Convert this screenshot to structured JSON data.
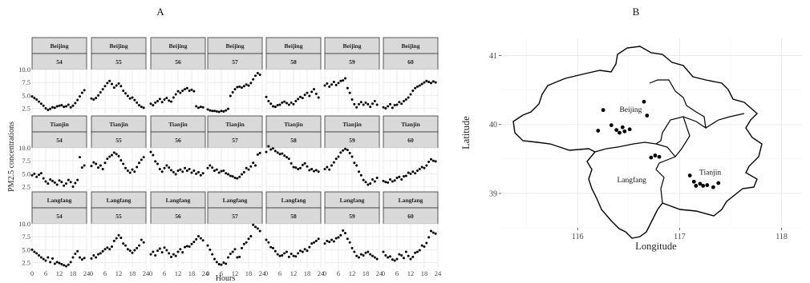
{
  "chart_data": [
    {
      "type": "scatter",
      "panel_label": "A",
      "ylabel": "PM2.5 concentrations",
      "xlabel": "Hours",
      "xlim": [
        0,
        24
      ],
      "ylim": [
        1.5,
        10
      ],
      "x_ticks": [
        0,
        6,
        12,
        18,
        24
      ],
      "y_ticks": [
        2.5,
        5.0,
        7.5,
        10.0
      ],
      "y_tick_labels": [
        "2.5",
        "5.0",
        "7.5",
        "10.0"
      ],
      "rows": [
        "Beijing",
        "Tianjin",
        "Langfang"
      ],
      "cols": [
        "54",
        "55",
        "56",
        "57",
        "58",
        "59",
        "60"
      ],
      "hours": [
        0,
        1,
        2,
        3,
        4,
        5,
        6,
        7,
        8,
        9,
        10,
        11,
        12,
        13,
        14,
        15,
        16,
        17,
        18,
        19,
        20,
        21,
        22,
        23
      ],
      "values": {
        "Beijing": [
          [
            4.8,
            4.5,
            4.2,
            3.8,
            3.4,
            3.0,
            2.5,
            2.2,
            2.4,
            2.7,
            2.6,
            2.9,
            3.0,
            3.1,
            2.8,
            2.9,
            3.2,
            2.7,
            3.0,
            3.5,
            4.1,
            4.8,
            5.5,
            6.0
          ],
          [
            4.4,
            4.2,
            4.5,
            5.0,
            5.6,
            6.2,
            6.8,
            7.4,
            7.8,
            7.2,
            6.5,
            6.9,
            7.3,
            6.8,
            5.9,
            5.4,
            4.9,
            4.4,
            4.6,
            4.1,
            3.6,
            3.1,
            2.8,
            2.6
          ],
          [
            3.4,
            3.1,
            3.6,
            3.9,
            4.3,
            3.7,
            4.2,
            4.5,
            4.0,
            3.8,
            4.6,
            5.2,
            5.8,
            5.5,
            5.9,
            6.2,
            6.4,
            5.9,
            6.1,
            5.8,
            2.9,
            2.6,
            2.8,
            2.7
          ],
          [
            2.3,
            2.1,
            2.0,
            2.0,
            1.9,
            1.8,
            2.0,
            1.9,
            2.1,
            2.4,
            4.9,
            5.6,
            6.2,
            6.6,
            6.7,
            6.5,
            6.8,
            7.1,
            6.9,
            7.4,
            8.1,
            8.8,
            9.3,
            9.0
          ],
          [
            4.7,
            3.9,
            3.4,
            2.9,
            2.8,
            3.1,
            3.2,
            3.6,
            3.8,
            3.5,
            3.2,
            3.6,
            3.3,
            3.9,
            4.3,
            4.7,
            4.5,
            5.1,
            5.5,
            4.9,
            5.7,
            6.2,
            5.3,
            4.6
          ],
          [
            6.9,
            7.3,
            6.7,
            7.1,
            7.6,
            7.0,
            7.4,
            7.8,
            7.9,
            8.3,
            6.4,
            5.5,
            4.2,
            3.3,
            2.7,
            3.3,
            3.7,
            3.2,
            3.6,
            3.3,
            2.8,
            3.4,
            3.9,
            3.2
          ],
          [
            2.7,
            2.5,
            2.9,
            3.3,
            2.6,
            3.1,
            3.2,
            3.7,
            3.4,
            3.9,
            4.2,
            4.6,
            5.2,
            5.9,
            6.4,
            6.7,
            6.9,
            7.2,
            7.5,
            7.8,
            7.6,
            7.4,
            7.7,
            7.5
          ]
        ],
        "Tianjin": [
          [
            4.7,
            5.0,
            4.4,
            4.8,
            5.1,
            4.1,
            3.5,
            3.1,
            3.9,
            3.6,
            3.3,
            2.9,
            3.7,
            3.4,
            2.7,
            3.1,
            3.8,
            3.4,
            2.5,
            3.2,
            3.8,
            8.2,
            6.2,
            6.6
          ],
          [
            6.5,
            7.2,
            6.9,
            6.2,
            6.6,
            5.9,
            7.1,
            7.9,
            8.3,
            8.6,
            9.1,
            8.8,
            8.4,
            7.6,
            6.9,
            6.1,
            5.6,
            5.2,
            5.8,
            5.4,
            6.3,
            7.1,
            7.7,
            8.2
          ],
          [
            9.2,
            8.6,
            7.4,
            6.9,
            5.9,
            5.4,
            6.1,
            6.6,
            6.2,
            5.7,
            5.3,
            4.9,
            5.6,
            5.8,
            5.4,
            6.1,
            5.6,
            5.9,
            5.2,
            5.6,
            5.0,
            5.3,
            4.7,
            5.1
          ],
          [
            6.1,
            6.6,
            6.2,
            5.6,
            5.8,
            5.2,
            5.5,
            5.6,
            5.1,
            4.9,
            4.6,
            4.5,
            4.2,
            4.1,
            4.4,
            4.9,
            5.3,
            6.1,
            5.8,
            6.4,
            7.1,
            6.6,
            8.7,
            9.0
          ],
          [
            9.2,
            10.3,
            9.7,
            9.9,
            9.4,
            9.1,
            8.8,
            8.9,
            8.5,
            8.2,
            7.9,
            7.0,
            6.3,
            6.2,
            5.9,
            6.1,
            6.7,
            7.0,
            6.4,
            5.7,
            5.9,
            5.5,
            5.7,
            5.4
          ],
          [
            5.9,
            6.3,
            5.8,
            6.6,
            7.2,
            7.9,
            8.3,
            9.1,
            9.5,
            9.8,
            9.6,
            9.0,
            8.3,
            7.1,
            6.6,
            5.4,
            4.7,
            3.8,
            3.4,
            2.9,
            3.1,
            3.9,
            3.5,
            4.2
          ],
          [
            3.6,
            3.4,
            3.3,
            3.9,
            3.5,
            3.7,
            4.2,
            4.4,
            3.9,
            4.5,
            4.6,
            5.2,
            5.0,
            5.4,
            5.1,
            5.6,
            5.9,
            6.3,
            6.1,
            6.6,
            7.3,
            7.8,
            7.5,
            7.4
          ]
        ],
        "Langfang": [
          [
            5.0,
            4.6,
            4.3,
            3.9,
            3.5,
            3.2,
            2.9,
            3.5,
            2.6,
            3.3,
            2.3,
            2.6,
            2.4,
            2.2,
            2.0,
            1.8,
            2.1,
            2.6,
            3.5,
            4.2,
            4.7,
            3.5,
            3.1,
            3.4
          ],
          [
            3.3,
            3.9,
            3.5,
            4.1,
            4.3,
            4.7,
            5.1,
            5.4,
            5.1,
            5.6,
            6.7,
            7.2,
            7.8,
            7.3,
            6.2,
            5.8,
            5.1,
            4.8,
            4.4,
            4.9,
            5.3,
            5.8,
            6.9,
            6.4
          ],
          [
            4.1,
            4.6,
            3.9,
            4.8,
            5.2,
            4.5,
            5.4,
            4.9,
            4.3,
            3.6,
            4.1,
            3.8,
            4.6,
            5.1,
            4.5,
            5.5,
            5.7,
            5.6,
            6.1,
            6.5,
            7.0,
            7.6,
            7.2,
            6.8
          ],
          [
            5.8,
            5.0,
            4.1,
            3.2,
            2.6,
            2.2,
            2.1,
            2.5,
            2.3,
            3.5,
            4.2,
            4.6,
            5.1,
            3.5,
            3.6,
            5.3,
            6.1,
            6.4,
            7.1,
            7.6,
            9.8,
            9.4,
            9.1,
            8.6
          ],
          [
            6.9,
            6.4,
            5.5,
            5.3,
            4.7,
            4.1,
            3.8,
            3.9,
            4.3,
            4.6,
            3.6,
            4.2,
            3.8,
            3.7,
            4.3,
            4.8,
            4.6,
            5.1,
            4.8,
            5.5,
            6.2,
            6.4,
            6.7,
            7.1
          ],
          [
            6.2,
            6.7,
            6.5,
            6.9,
            6.6,
            7.2,
            7.4,
            7.8,
            8.7,
            8.2,
            7.1,
            6.4,
            5.3,
            4.6,
            3.8,
            3.5,
            4.1,
            3.9,
            4.4,
            4.6,
            4.1,
            3.8,
            3.5,
            3.2
          ],
          [
            4.6,
            3.9,
            3.5,
            3.7,
            3.1,
            2.9,
            3.2,
            4.1,
            3.9,
            3.4,
            4.6,
            3.8,
            3.2,
            3.6,
            4.4,
            4.6,
            4.9,
            5.8,
            5.6,
            6.3,
            7.4,
            8.6,
            8.3,
            8.1
          ]
        ]
      }
    },
    {
      "type": "map",
      "panel_label": "B",
      "xlabel": "Longitude",
      "ylabel": "Latitude",
      "xlim": [
        115.25,
        118.2
      ],
      "ylim": [
        38.5,
        41.25
      ],
      "x_ticks": [
        116,
        117,
        118
      ],
      "y_ticks": [
        39,
        40,
        41
      ],
      "regions": [
        {
          "name": "Beijing",
          "label_lon": 116.52,
          "label_lat": 40.18
        },
        {
          "name": "Langfang",
          "label_lon": 116.53,
          "label_lat": 39.16
        },
        {
          "name": "Tianjin",
          "label_lon": 117.3,
          "label_lat": 39.27
        }
      ],
      "stations": [
        {
          "lon": 116.2,
          "lat": 39.91
        },
        {
          "lon": 116.25,
          "lat": 40.21
        },
        {
          "lon": 116.33,
          "lat": 39.99
        },
        {
          "lon": 116.38,
          "lat": 39.92
        },
        {
          "lon": 116.41,
          "lat": 39.88
        },
        {
          "lon": 116.44,
          "lat": 39.96
        },
        {
          "lon": 116.46,
          "lat": 39.9
        },
        {
          "lon": 116.51,
          "lat": 39.93
        },
        {
          "lon": 116.65,
          "lat": 40.33
        },
        {
          "lon": 116.68,
          "lat": 40.13
        },
        {
          "lon": 116.72,
          "lat": 39.52
        },
        {
          "lon": 116.76,
          "lat": 39.55
        },
        {
          "lon": 116.8,
          "lat": 39.53
        },
        {
          "lon": 117.1,
          "lat": 39.26
        },
        {
          "lon": 117.14,
          "lat": 39.17
        },
        {
          "lon": 117.16,
          "lat": 39.11
        },
        {
          "lon": 117.2,
          "lat": 39.14
        },
        {
          "lon": 117.23,
          "lat": 39.11
        },
        {
          "lon": 117.27,
          "lat": 39.12
        },
        {
          "lon": 117.33,
          "lat": 39.09
        },
        {
          "lon": 117.38,
          "lat": 39.15
        }
      ]
    }
  ]
}
